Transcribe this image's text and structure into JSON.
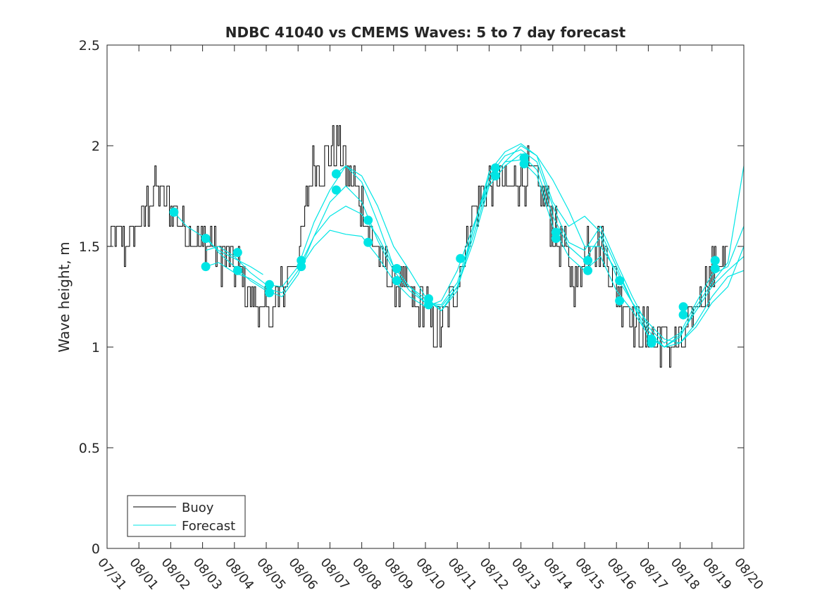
{
  "chart_data": {
    "type": "line",
    "title": "NDBC 41040 vs CMEMS Waves: 5 to 7 day forecast",
    "xlabel": "",
    "ylabel": "Wave height, m",
    "xlim": [
      0,
      20
    ],
    "ylim": [
      0,
      2.5
    ],
    "x_tick_labels": [
      "07/31",
      "08/01",
      "08/02",
      "08/03",
      "08/04",
      "08/05",
      "08/06",
      "08/07",
      "08/08",
      "08/09",
      "08/10",
      "08/11",
      "08/12",
      "08/13",
      "08/14",
      "08/15",
      "08/16",
      "08/17",
      "08/18",
      "08/19",
      "08/20"
    ],
    "y_ticks": [
      0,
      0.5,
      1,
      1.5,
      2,
      2.5
    ],
    "y_tick_labels": [
      "0",
      "0.5",
      "1",
      "1.5",
      "2",
      "2.5"
    ],
    "legend": {
      "placement": "bottom-left",
      "entries": [
        "Buoy",
        "Forecast"
      ]
    },
    "colors": {
      "buoy": "#000000",
      "forecast": "#00e5e5",
      "axes": "#262626"
    },
    "buoy": {
      "name": "Buoy",
      "x": [
        0,
        0.25,
        0.5,
        0.75,
        1,
        1.25,
        1.5,
        1.75,
        2,
        2.25,
        2.5,
        2.75,
        3,
        3.25,
        3.5,
        3.75,
        4,
        4.25,
        4.5,
        4.75,
        5,
        5.25,
        5.5,
        5.75,
        6,
        6.25,
        6.5,
        6.75,
        7,
        7.25,
        7.5,
        7.75,
        8,
        8.25,
        8.5,
        8.75,
        9,
        9.25,
        9.5,
        9.75,
        10,
        10.25,
        10.5,
        10.75,
        11,
        11.25,
        11.5,
        11.75,
        12,
        12.25,
        12.5,
        12.75,
        13,
        13.25,
        13.5,
        13.75,
        14,
        14.25,
        14.5,
        14.75,
        15,
        15.25,
        15.5,
        15.75,
        16,
        16.25,
        16.5,
        16.75,
        17,
        17.25,
        17.5,
        17.75,
        18,
        18.25,
        18.5,
        18.75,
        19,
        19.25,
        19.5
      ],
      "values": [
        1.5,
        1.55,
        1.5,
        1.55,
        1.6,
        1.7,
        1.8,
        1.75,
        1.7,
        1.65,
        1.6,
        1.55,
        1.5,
        1.55,
        1.45,
        1.45,
        1.4,
        1.35,
        1.25,
        1.2,
        1.15,
        1.2,
        1.3,
        1.4,
        1.45,
        1.7,
        1.9,
        1.9,
        1.95,
        2.0,
        1.9,
        1.8,
        1.7,
        1.55,
        1.45,
        1.4,
        1.3,
        1.3,
        1.25,
        1.2,
        1.2,
        1.1,
        1.1,
        1.2,
        1.35,
        1.5,
        1.7,
        1.75,
        1.8,
        1.85,
        1.8,
        1.8,
        1.85,
        1.85,
        1.8,
        1.75,
        1.6,
        1.5,
        1.4,
        1.3,
        1.5,
        1.55,
        1.5,
        1.4,
        1.3,
        1.2,
        1.15,
        1.1,
        1.05,
        1.05,
        1.05,
        1.0,
        1.0,
        1.1,
        1.2,
        1.3,
        1.4,
        1.45,
        1.45
      ]
    },
    "forecast": {
      "name": "Forecast",
      "series": [
        {
          "x": [
            2.1,
            2.5,
            3,
            3.5,
            4,
            4.5,
            4.9
          ],
          "values": [
            1.67,
            1.6,
            1.55,
            1.48,
            1.44,
            1.4,
            1.36
          ]
        },
        {
          "x": [
            3.1,
            3.5,
            4,
            4.5,
            5,
            5.5,
            6,
            6.5,
            7,
            7.5,
            8,
            8.5,
            9,
            9.5,
            10,
            10.5,
            11,
            11.5,
            12,
            12.5,
            13,
            13.5,
            14,
            14.5,
            15,
            15.5,
            16,
            16.5,
            17,
            17.5,
            18,
            18.5,
            19,
            19.5,
            20
          ],
          "values": [
            1.55,
            1.47,
            1.4,
            1.33,
            1.28,
            1.25,
            1.36,
            1.55,
            1.72,
            1.8,
            1.72,
            1.53,
            1.38,
            1.28,
            1.22,
            1.21,
            1.32,
            1.58,
            1.85,
            1.95,
            1.98,
            1.92,
            1.7,
            1.52,
            1.48,
            1.6,
            1.42,
            1.25,
            1.1,
            1.02,
            1.07,
            1.22,
            1.36,
            1.4,
            1.6
          ]
        },
        {
          "x": [
            3.1,
            3.5,
            4,
            4.5,
            5,
            5.5,
            6,
            6.5,
            7,
            7.5,
            8,
            8.5,
            9,
            9.5,
            10,
            10.5,
            11,
            11.5,
            12,
            12.5,
            13,
            13.5,
            14,
            14.5,
            15,
            15.5,
            16,
            16.5,
            17,
            17.5,
            18,
            18.5,
            19,
            19.5,
            20
          ],
          "values": [
            1.4,
            1.42,
            1.37,
            1.34,
            1.29,
            1.27,
            1.38,
            1.5,
            1.58,
            1.56,
            1.55,
            1.45,
            1.33,
            1.25,
            1.2,
            1.23,
            1.38,
            1.6,
            1.82,
            1.92,
            1.93,
            1.85,
            1.6,
            1.45,
            1.38,
            1.45,
            1.28,
            1.18,
            1.06,
            1.0,
            1.06,
            1.18,
            1.3,
            1.38,
            1.45
          ]
        },
        {
          "x": [
            3.1,
            3.5,
            4,
            4.5,
            5,
            5.5,
            6,
            6.5,
            7,
            7.5,
            8,
            8.5,
            9,
            9.5,
            10,
            10.5,
            11,
            11.5,
            12,
            12.5,
            13,
            13.5,
            14,
            14.5,
            15,
            15.5,
            16,
            16.5,
            17,
            17.5,
            18,
            18.5,
            19,
            19.5,
            20
          ],
          "values": [
            1.48,
            1.5,
            1.45,
            1.37,
            1.31,
            1.3,
            1.4,
            1.62,
            1.78,
            1.9,
            1.82,
            1.62,
            1.4,
            1.3,
            1.24,
            1.18,
            1.3,
            1.52,
            1.8,
            1.9,
            1.96,
            1.88,
            1.65,
            1.5,
            1.43,
            1.55,
            1.35,
            1.22,
            1.12,
            1.04,
            1.02,
            1.12,
            1.25,
            1.35,
            1.38
          ]
        },
        {
          "x": [
            6.1,
            6.5,
            7,
            7.5,
            8,
            8.5,
            9,
            9.5,
            10,
            10.5,
            11,
            11.5,
            12,
            12.5,
            13,
            13.5,
            14,
            14.5,
            15,
            15.5,
            16,
            16.5,
            17,
            17.5,
            18,
            18.5,
            19,
            19.5,
            20
          ],
          "values": [
            1.42,
            1.55,
            1.65,
            1.7,
            1.66,
            1.55,
            1.4,
            1.3,
            1.22,
            1.2,
            1.3,
            1.55,
            1.82,
            1.92,
            2.0,
            1.95,
            1.72,
            1.6,
            1.65,
            1.57,
            1.4,
            1.22,
            1.08,
            1.0,
            1.02,
            1.1,
            1.22,
            1.3,
            1.5
          ]
        },
        {
          "x": [
            7.2,
            7.5,
            8,
            8.5,
            9,
            9.5,
            10,
            10.5,
            11,
            11.5,
            12,
            12.5,
            13,
            13.5,
            14,
            14.5,
            15,
            15.5,
            16,
            16.5,
            17,
            17.5,
            18,
            18.5,
            19,
            19.5,
            20
          ],
          "values": [
            1.86,
            1.9,
            1.85,
            1.7,
            1.5,
            1.38,
            1.25,
            1.18,
            1.28,
            1.58,
            1.87,
            1.97,
            2.01,
            1.95,
            1.83,
            1.68,
            1.5,
            1.5,
            1.38,
            1.22,
            1.05,
            1.0,
            1.05,
            1.2,
            1.32,
            1.42,
            1.9
          ]
        }
      ]
    },
    "forecast_markers": {
      "x": [
        2.1,
        3.1,
        3.1,
        4.1,
        4.1,
        5.1,
        5.1,
        6.1,
        6.1,
        7.2,
        7.2,
        8.2,
        8.2,
        9.1,
        9.1,
        10.1,
        10.1,
        11.1,
        12.2,
        12.2,
        13.1,
        13.1,
        14.1,
        14.1,
        15.1,
        15.1,
        16.1,
        16.1,
        17.1,
        17.1,
        18.1,
        18.1,
        19.1,
        19.1
      ],
      "values": [
        1.67,
        1.54,
        1.4,
        1.47,
        1.38,
        1.31,
        1.27,
        1.43,
        1.4,
        1.86,
        1.78,
        1.63,
        1.52,
        1.39,
        1.33,
        1.24,
        1.21,
        1.44,
        1.89,
        1.85,
        1.94,
        1.91,
        1.57,
        1.54,
        1.43,
        1.38,
        1.33,
        1.23,
        1.04,
        1.02,
        1.2,
        1.16,
        1.43,
        1.39
      ]
    }
  }
}
